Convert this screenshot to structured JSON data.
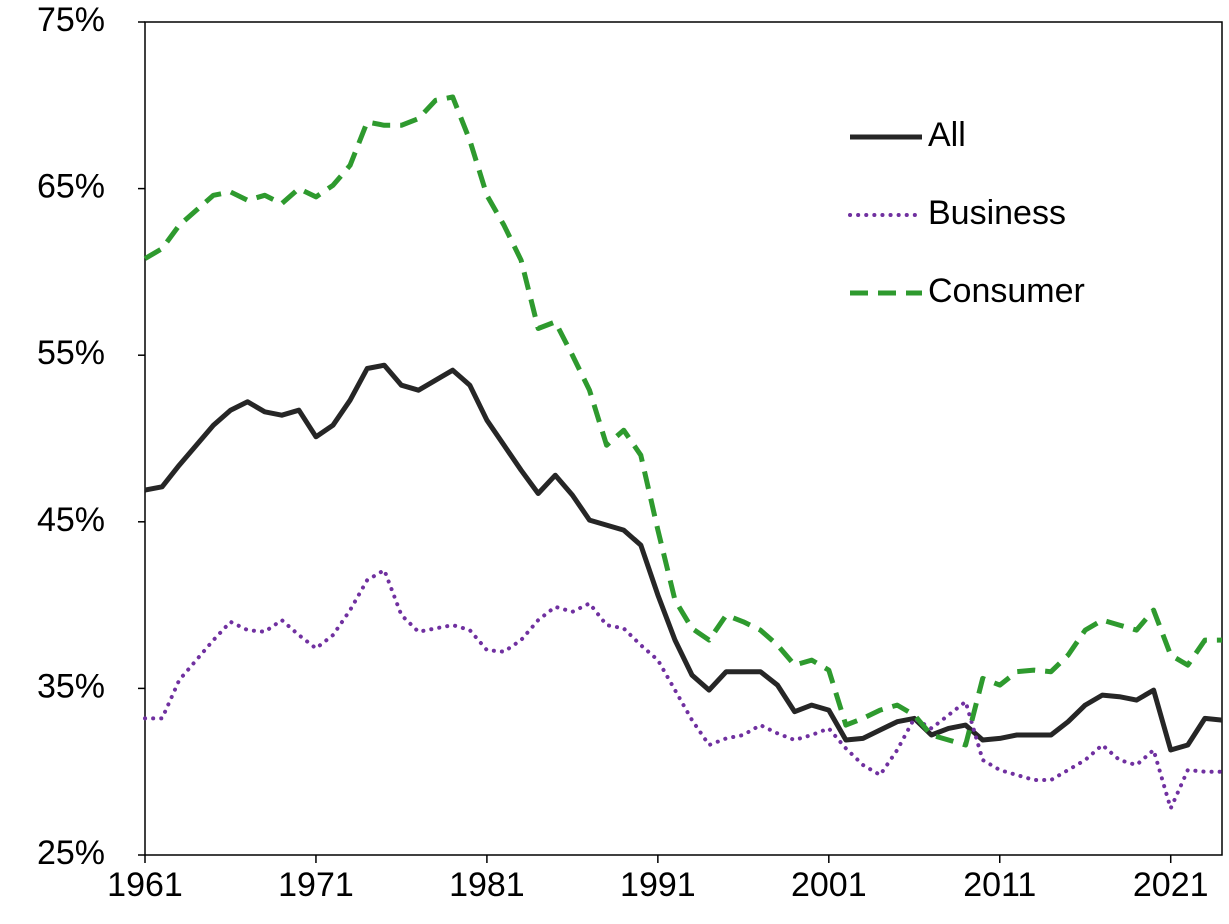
{
  "chart_data": {
    "type": "line",
    "x": [
      1961,
      1962,
      1963,
      1964,
      1965,
      1966,
      1967,
      1968,
      1969,
      1970,
      1971,
      1972,
      1973,
      1974,
      1975,
      1976,
      1977,
      1978,
      1979,
      1980,
      1981,
      1982,
      1983,
      1984,
      1985,
      1986,
      1987,
      1988,
      1989,
      1990,
      1991,
      1992,
      1993,
      1994,
      1995,
      1996,
      1997,
      1998,
      1999,
      2000,
      2001,
      2002,
      2003,
      2004,
      2005,
      2006,
      2007,
      2008,
      2009,
      2010,
      2011,
      2012,
      2013,
      2014,
      2015,
      2016,
      2017,
      2018,
      2019,
      2020,
      2021,
      2022,
      2023,
      2024
    ],
    "series": [
      {
        "name": "All",
        "color": "#262626",
        "style": "solid",
        "values": [
          46.9,
          47.1,
          48.4,
          49.6,
          50.8,
          51.7,
          52.2,
          51.6,
          51.4,
          51.7,
          50.1,
          50.8,
          52.3,
          54.2,
          54.4,
          53.2,
          52.9,
          53.5,
          54.1,
          53.2,
          51.1,
          49.6,
          48.1,
          46.7,
          47.8,
          46.6,
          45.1,
          44.8,
          44.5,
          43.6,
          40.6,
          37.9,
          35.8,
          34.9,
          36.0,
          36.0,
          36.0,
          35.2,
          33.6,
          34.0,
          33.7,
          31.9,
          32.0,
          32.5,
          33.0,
          33.2,
          32.2,
          32.6,
          32.8,
          31.9,
          32.0,
          32.2,
          32.2,
          32.2,
          33.0,
          34.0,
          34.6,
          34.5,
          34.3,
          34.9,
          31.3,
          31.6,
          33.2,
          33.1
        ]
      },
      {
        "name": "Business",
        "color": "#7030a0",
        "style": "dotted",
        "values": [
          33.2,
          33.2,
          35.5,
          36.7,
          37.9,
          39.0,
          38.5,
          38.4,
          39.1,
          38.2,
          37.4,
          38.2,
          39.7,
          41.5,
          42.1,
          39.4,
          38.4,
          38.6,
          38.8,
          38.5,
          37.3,
          37.2,
          37.9,
          39.1,
          39.9,
          39.6,
          40.1,
          38.8,
          38.6,
          37.6,
          36.7,
          34.9,
          33.1,
          31.6,
          32.0,
          32.2,
          32.8,
          32.3,
          31.9,
          32.2,
          32.6,
          31.4,
          30.4,
          29.8,
          31.3,
          33.2,
          32.6,
          33.4,
          34.2,
          30.7,
          30.1,
          29.8,
          29.5,
          29.5,
          30.1,
          30.7,
          31.6,
          30.7,
          30.4,
          31.3,
          27.8,
          30.1,
          30.0,
          30.0
        ]
      },
      {
        "name": "Consumer",
        "color": "#2e9a2e",
        "style": "dashed",
        "values": [
          60.8,
          61.4,
          62.8,
          63.7,
          64.6,
          64.8,
          64.3,
          64.6,
          64.1,
          65.0,
          64.5,
          65.2,
          66.4,
          69.0,
          68.8,
          68.8,
          69.2,
          70.3,
          70.5,
          67.9,
          64.6,
          62.8,
          60.7,
          56.6,
          57.0,
          55.0,
          52.9,
          49.6,
          50.5,
          49.0,
          44.5,
          40.3,
          38.6,
          37.9,
          39.4,
          39.0,
          38.5,
          37.6,
          36.4,
          36.7,
          36.1,
          32.8,
          33.2,
          33.7,
          34.0,
          33.4,
          32.2,
          31.9,
          31.6,
          35.6,
          35.2,
          36.0,
          36.1,
          36.0,
          37.0,
          38.5,
          39.1,
          38.8,
          38.5,
          39.7,
          37.0,
          36.4,
          37.9,
          37.9
        ]
      }
    ],
    "xlim": [
      1961,
      2024
    ],
    "xticks": [
      1961,
      1971,
      1981,
      1991,
      2001,
      2011,
      2021
    ],
    "ylim": [
      25,
      75
    ],
    "yticks": [
      {
        "value": 25,
        "label": "25%"
      },
      {
        "value": 35,
        "label": "35%"
      },
      {
        "value": 45,
        "label": "45%"
      },
      {
        "value": 55,
        "label": "55%"
      },
      {
        "value": 65,
        "label": "65%"
      },
      {
        "value": 75,
        "label": "75%"
      }
    ],
    "grid": false,
    "legend": "upper right"
  }
}
